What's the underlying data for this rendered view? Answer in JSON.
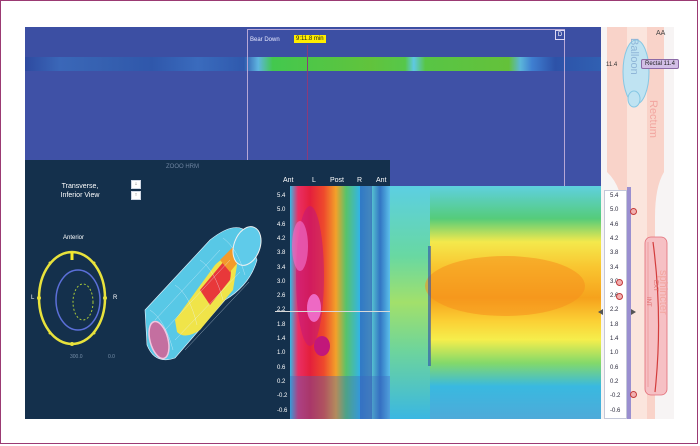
{
  "timeline": {
    "event_label": "Bear Down",
    "time_badge": "9:11.8 min",
    "close_label": "D"
  },
  "panel_3d": {
    "title": "Transverse,\nInferior View",
    "hrm_label": "ZOOO HRM",
    "anterior_label": "Anterior",
    "left_label": "L",
    "right_label": "R",
    "scale_start": "300.0",
    "scale_end": "0.0",
    "toggle_top": "↓",
    "toggle_bottom": "↑"
  },
  "heatmap": {
    "columns": [
      "Ant",
      "L",
      "Post",
      "R",
      "Ant"
    ],
    "y_labels": [
      "5.4",
      "5.0",
      "4.6",
      "4.2",
      "3.8",
      "3.4",
      "3.0",
      "2.6",
      "2.2",
      "1.8",
      "1.4",
      "1.0",
      "0.6",
      "0.2",
      "-0.2",
      "-0.6"
    ]
  },
  "right_panel": {
    "corner_label": "AA",
    "balloon_label": "Balloon",
    "rectum_label": "Rectum",
    "sphincter_label": "sphincter",
    "ext_label": "EXT",
    "int_label": "INT",
    "rectal_value_left": "11.4",
    "rectal_badge": "Rectal 11.4",
    "scale_labels": [
      "5.4",
      "5.0",
      "4.6",
      "4.2",
      "3.8",
      "3.4",
      "3.0",
      "2.6",
      "2.2",
      "1.8",
      "1.4",
      "1.0",
      "0.6",
      "0.2",
      "-0.2",
      "-0.6"
    ]
  },
  "colors": {
    "background": "#3f51a6",
    "panel": "#14304c",
    "accent_yellow": "#ffee00",
    "frame": "#9b3a73"
  },
  "icons": [
    "toggle-down-icon",
    "toggle-up-icon",
    "close-icon",
    "pointer-left-icon",
    "pointer-right-icon"
  ]
}
